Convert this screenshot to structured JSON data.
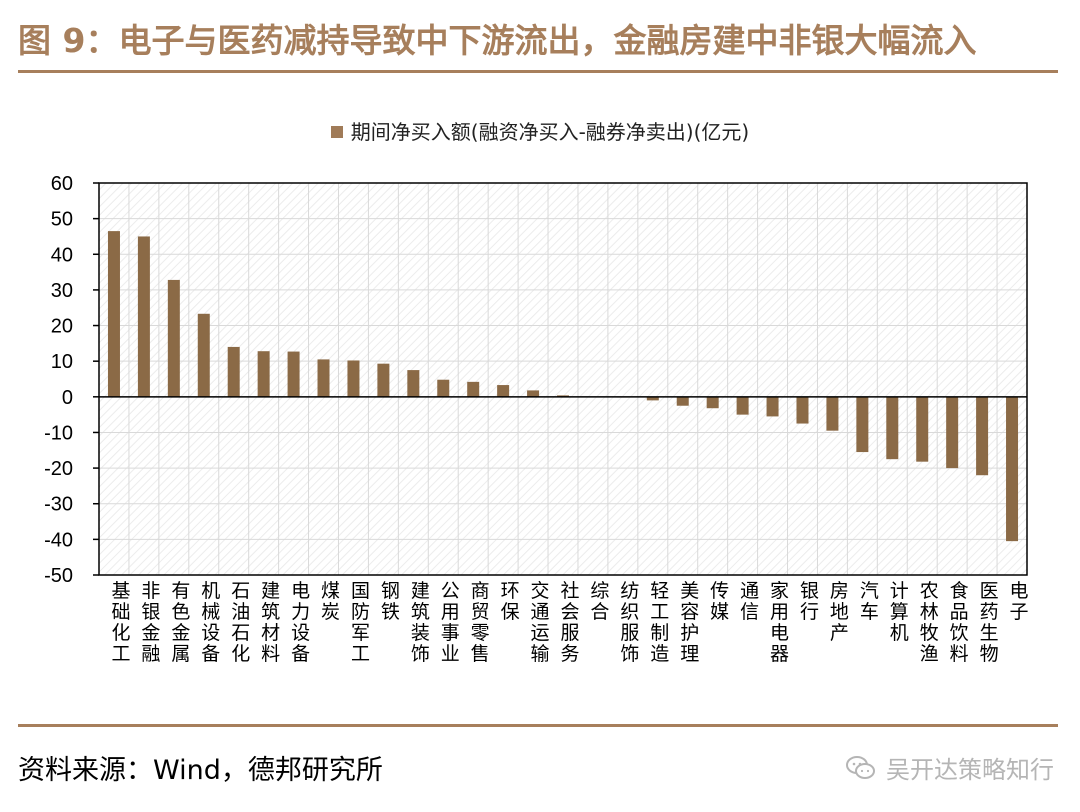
{
  "header": {
    "title": "图 9：电子与医药减持导致中下游流出，金融房建中非银大幅流入"
  },
  "footer": {
    "source": "资料来源：Wind，德邦研究所",
    "watermark": "吴开达策略知行"
  },
  "colors": {
    "accent": "#a77f5c",
    "bar": "#8b6a46",
    "grid": "#d9d9d9"
  },
  "chart_data": {
    "type": "bar",
    "legend": "期间净买入额(融资净买入-融券净卖出)(亿元)",
    "legend_position": "top-center",
    "ylim": [
      -50,
      60
    ],
    "yticks": [
      60,
      50,
      40,
      30,
      20,
      10,
      0,
      -10,
      -20,
      -30,
      -40,
      -50
    ],
    "grid": true,
    "categories": [
      "基础化工",
      "非银金融",
      "有色金属",
      "机械设备",
      "石油石化",
      "建筑材料",
      "电力设备",
      "煤炭",
      "国防军工",
      "钢铁",
      "建筑装饰",
      "公用事业",
      "商贸零售",
      "环保",
      "交通运输",
      "社会服务",
      "综合",
      "纺织服饰",
      "轻工制造",
      "美容护理",
      "传媒",
      "通信",
      "家用电器",
      "银行",
      "房地产",
      "汽车",
      "计算机",
      "农林牧渔",
      "食品饮料",
      "医药生物",
      "电子"
    ],
    "series": [
      {
        "values": [
          46.5,
          45,
          32.8,
          23.3,
          14,
          12.8,
          12.7,
          10.5,
          10.2,
          9.3,
          7.5,
          4.8,
          4.2,
          3.3,
          1.8,
          0.4,
          0,
          -0.2,
          -1,
          -2.5,
          -3.2,
          -5,
          -5.5,
          -7.5,
          -9.5,
          -15.5,
          -17.5,
          -18.2,
          -20,
          -22,
          -40.5
        ]
      }
    ]
  }
}
